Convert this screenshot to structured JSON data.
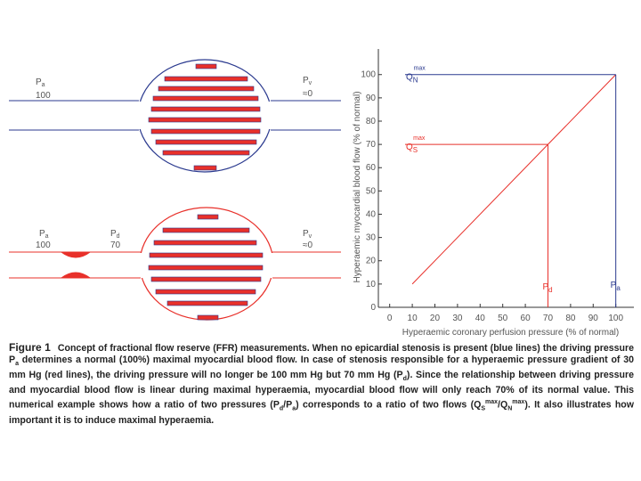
{
  "diagram": {
    "top": {
      "pa": {
        "p": "P",
        "sub": "a",
        "value": "100"
      },
      "pv": {
        "p": "P",
        "sub": "v",
        "value": "≈0"
      }
    },
    "bottom": {
      "pa": {
        "p": "P",
        "sub": "a",
        "value": "100"
      },
      "pd": {
        "p": "P",
        "sub": "d",
        "value": "70"
      },
      "pv": {
        "p": "P",
        "sub": "v",
        "value": "≈0"
      }
    }
  },
  "chart_data": {
    "type": "line",
    "y_label": "Hyperaemic myocardial blood flow (% of normal)",
    "x_label": "Hyperaemic coronary perfusion pressure (% of normal)",
    "x": [
      10,
      100
    ],
    "series": [
      {
        "color": "#e8302a",
        "values": [
          10,
          100
        ]
      }
    ],
    "levels": [
      {
        "color": "#2b3a8f",
        "value": 100,
        "x": 100,
        "label": "Q",
        "sub": "N",
        "sup": "max",
        "x_marker": {
          "p": "P",
          "sub": "a"
        }
      },
      {
        "color": "#e8302a",
        "value": 70,
        "x": 70,
        "label": "Q",
        "sub": "S",
        "sup": "max",
        "x_marker": {
          "p": "P",
          "sub": "d"
        }
      }
    ],
    "xlim": [
      -5,
      108
    ],
    "ylim": [
      0,
      111
    ],
    "xticks": [
      0,
      10,
      20,
      30,
      40,
      50,
      60,
      70,
      80,
      90,
      100
    ],
    "yticks": [
      0,
      10,
      20,
      30,
      40,
      50,
      60,
      70,
      80,
      90,
      100
    ]
  },
  "caption": {
    "label": "Figure 1",
    "parts": [
      "Concept of fractional flow reserve (FFR) measurements. When no epicardial stenosis is present (blue lines) the driving pressure P",
      "a",
      " determines a normal (100%) maximal myocardial blood flow. In case of stenosis responsible for a hyperaemic pressure gradient of 30 mm Hg (red lines), the driving pressure will no longer be 100 mm Hg but 70 mm Hg (P",
      "d",
      "). Since the relationship between driving pressure and myocardial blood flow is linear during maximal hyperaemia, myocardial blood flow will only reach 70% of its normal value. This numerical example shows how a ratio of two pressures (P",
      "d",
      "/P",
      "a",
      ") corresponds to a ratio of two flows (Q",
      "S",
      "max",
      "/Q",
      "N",
      "max",
      "). It also illustrates how important it is to induce maximal hyperaemia."
    ]
  }
}
